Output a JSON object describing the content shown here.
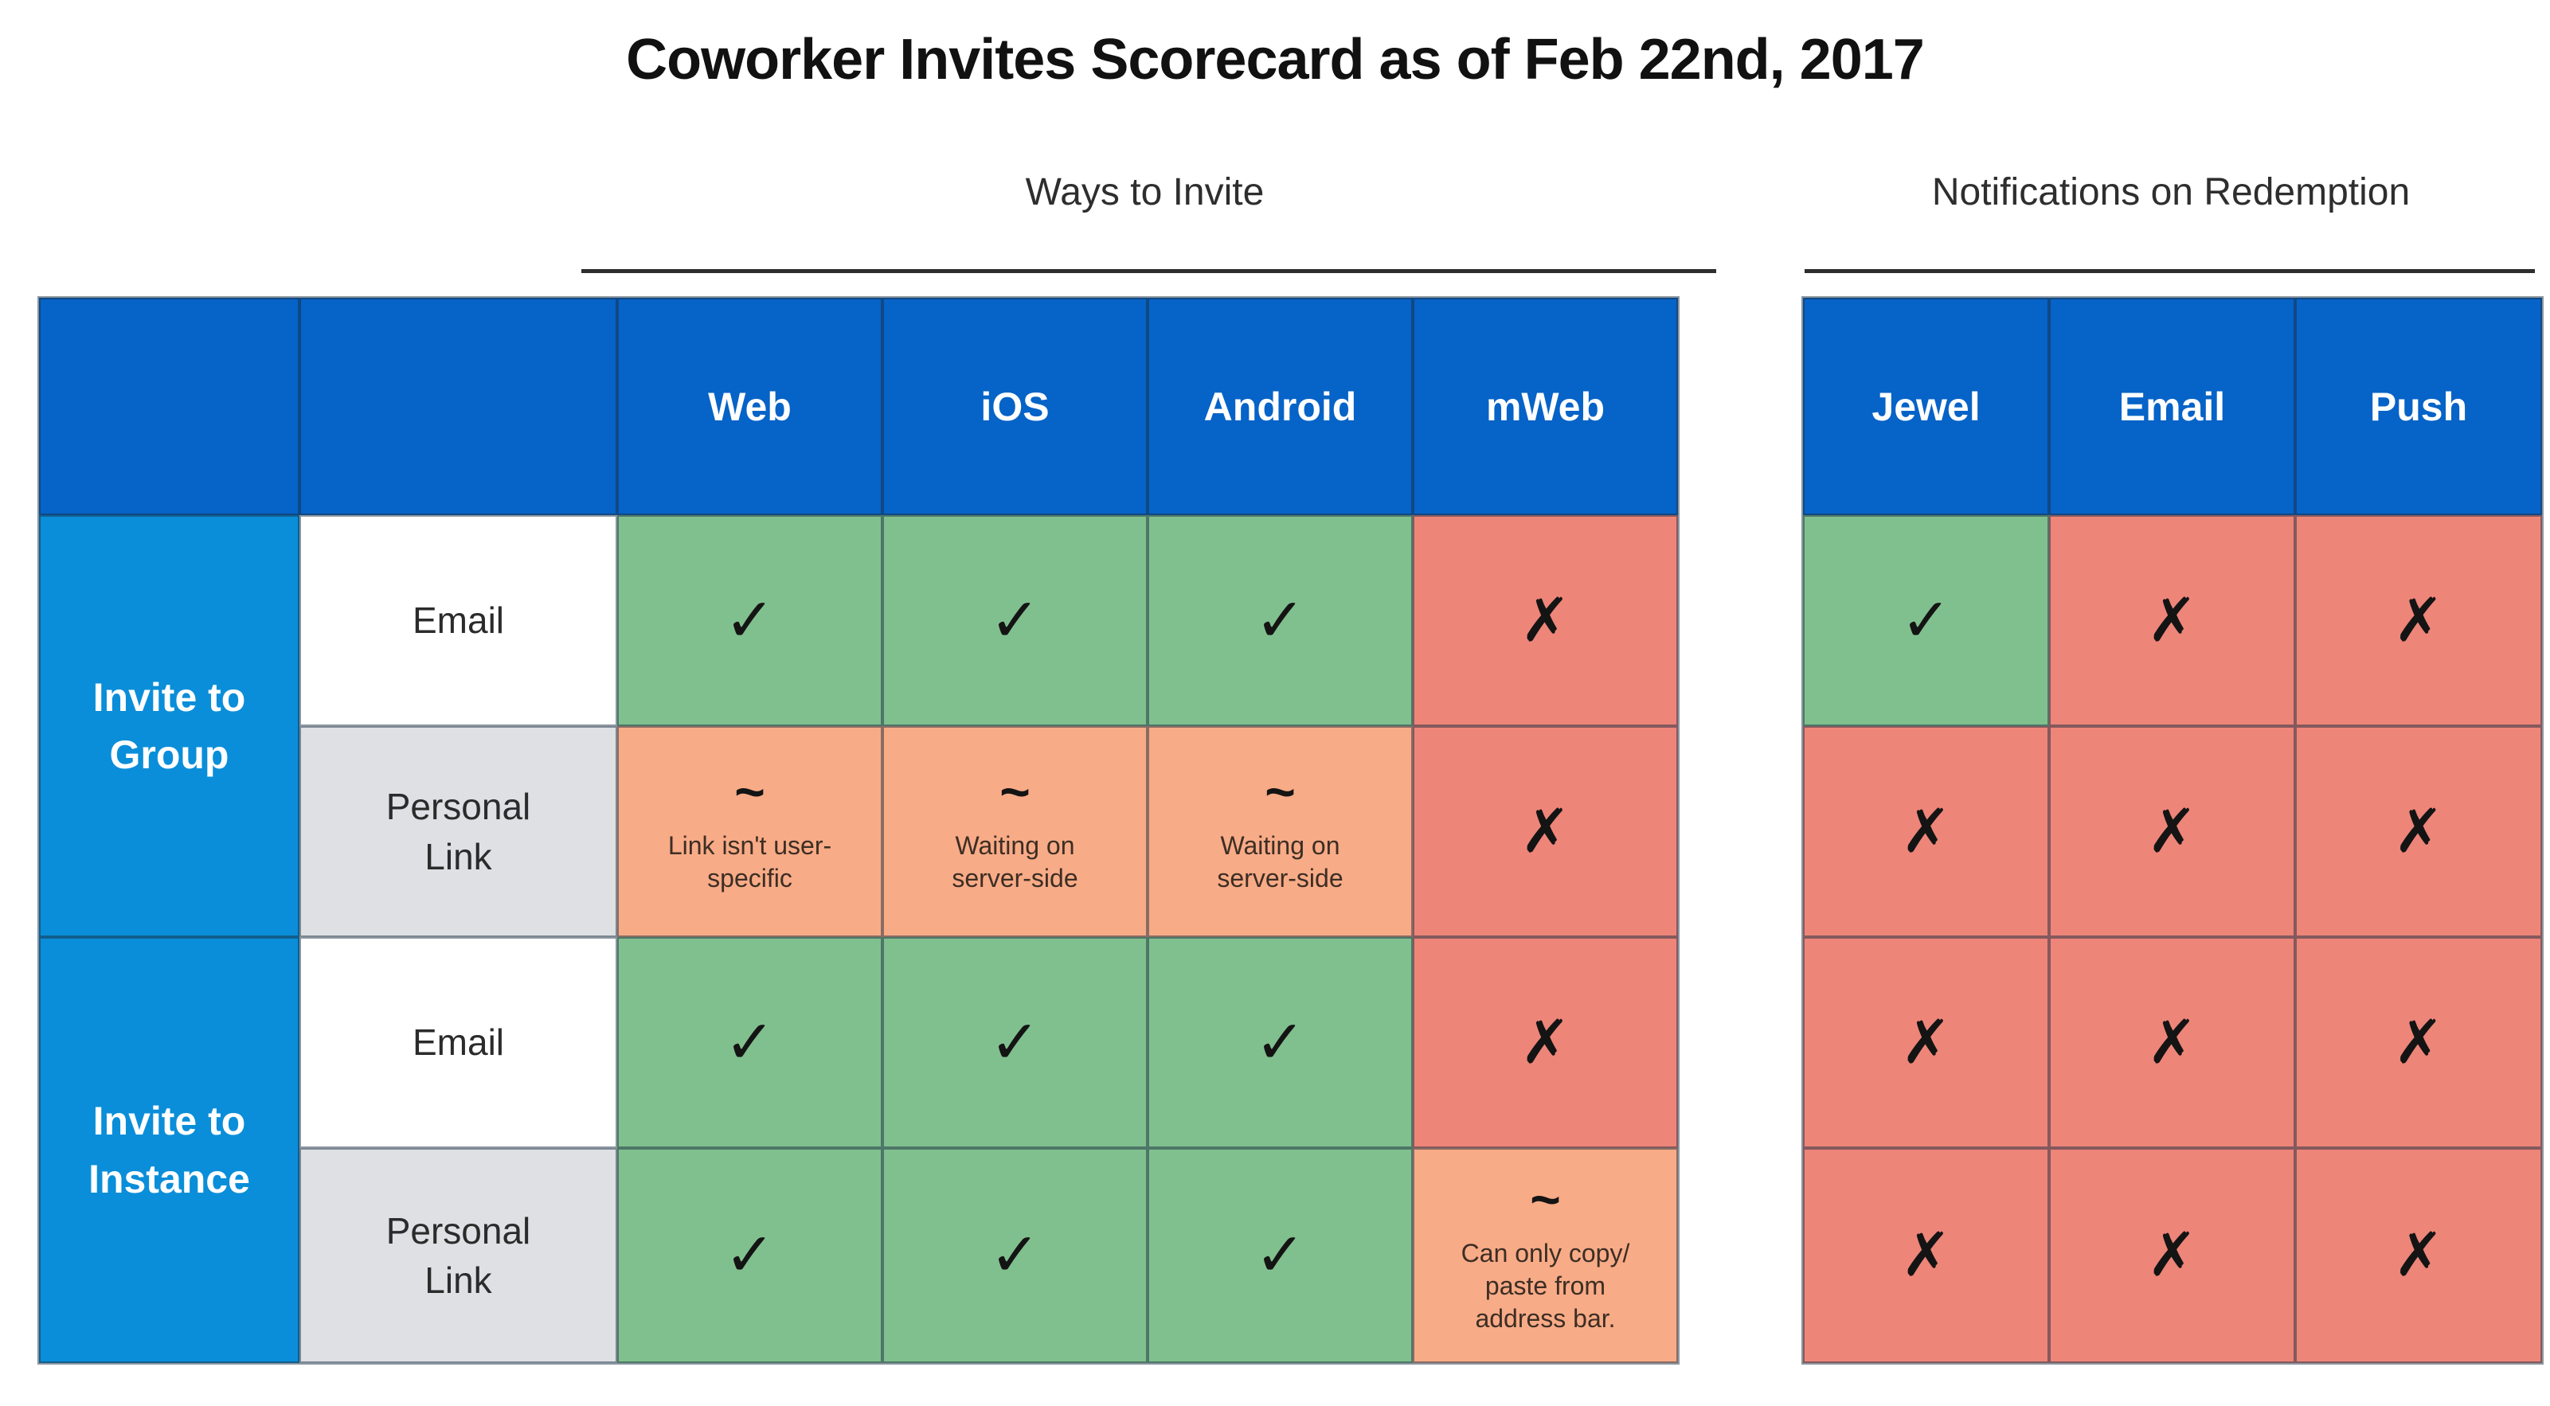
{
  "page_title": "Coworker Invites Scorecard as of Feb 22nd, 2017",
  "sections": {
    "ways_to_invite": "Ways to Invite",
    "notifications_on_redemption": "Notifications on Redemption"
  },
  "glyphs": {
    "yes": "✓",
    "no": "✗",
    "partial": "~"
  },
  "colors": {
    "header_blue": "#0663c7",
    "group_blue": "#0a8ed9",
    "yes_green": "#80c08e",
    "no_red": "#ee8579",
    "partial_orange": "#f8ab87",
    "method_row_gray": "#dee0e4",
    "method_row_white": "#ffffff"
  },
  "ways_table": {
    "columns": [
      "Web",
      "iOS",
      "Android",
      "mWeb"
    ],
    "rows": [
      {
        "group_label": "Invite to\nGroup",
        "method": "Email",
        "cells": [
          {
            "status": "yes"
          },
          {
            "status": "yes"
          },
          {
            "status": "yes"
          },
          {
            "status": "no"
          }
        ]
      },
      {
        "method": "Personal\nLink",
        "cells": [
          {
            "status": "partial",
            "note": "Link isn't user-\nspecific"
          },
          {
            "status": "partial",
            "note": "Waiting on\nserver-side"
          },
          {
            "status": "partial",
            "note": "Waiting on\nserver-side"
          },
          {
            "status": "no"
          }
        ]
      },
      {
        "group_label": "Invite to\nInstance",
        "method": "Email",
        "cells": [
          {
            "status": "yes"
          },
          {
            "status": "yes"
          },
          {
            "status": "yes"
          },
          {
            "status": "no"
          }
        ]
      },
      {
        "method": "Personal\nLink",
        "cells": [
          {
            "status": "yes"
          },
          {
            "status": "yes"
          },
          {
            "status": "yes"
          },
          {
            "status": "partial",
            "note": "Can only copy/\npaste from\naddress bar."
          }
        ]
      }
    ]
  },
  "notifications_table": {
    "columns": [
      "Jewel",
      "Email",
      "Push"
    ],
    "rows": [
      {
        "cells": [
          {
            "status": "yes"
          },
          {
            "status": "no"
          },
          {
            "status": "no"
          }
        ]
      },
      {
        "cells": [
          {
            "status": "no"
          },
          {
            "status": "no"
          },
          {
            "status": "no"
          }
        ]
      },
      {
        "cells": [
          {
            "status": "no"
          },
          {
            "status": "no"
          },
          {
            "status": "no"
          }
        ]
      },
      {
        "cells": [
          {
            "status": "no"
          },
          {
            "status": "no"
          },
          {
            "status": "no"
          }
        ]
      }
    ]
  }
}
